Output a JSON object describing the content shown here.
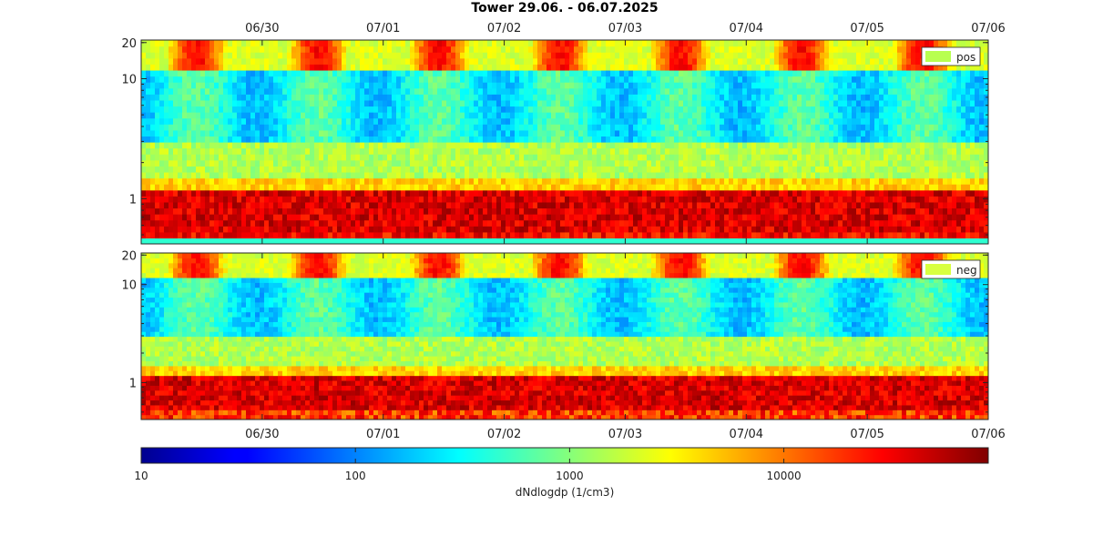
{
  "figure": {
    "title": "Tower 29.06.  -  06.07.2025"
  },
  "chart_data": [
    {
      "type": "heatmap",
      "id": "pos",
      "legend": "pos",
      "legend_color": "#b8ff50",
      "legend_position": "top-right",
      "x_tick_labels": [
        "06/30",
        "07/01",
        "07/02",
        "07/03",
        "07/04",
        "07/05",
        "07/06"
      ],
      "x_tick_position": "top",
      "x_range": [
        "2025-06-29",
        "2025-07-06"
      ],
      "y_scale": "log",
      "y_range": [
        0.42,
        21
      ],
      "y_tick_labels": [
        "1",
        "10",
        "20"
      ],
      "y_ticks": [
        1,
        10,
        20
      ],
      "grid": false
    },
    {
      "type": "heatmap",
      "id": "neg",
      "legend": "neg",
      "legend_color": "#d8ff40",
      "legend_position": "top-right",
      "x_tick_labels": [
        "06/30",
        "07/01",
        "07/02",
        "07/03",
        "07/04",
        "07/05",
        "07/06"
      ],
      "x_tick_position": "bottom",
      "x_range": [
        "2025-06-29",
        "2025-07-06"
      ],
      "y_scale": "log",
      "y_range": [
        0.42,
        21
      ],
      "y_tick_labels": [
        "1",
        "10",
        "20"
      ],
      "y_ticks": [
        1,
        10,
        20
      ],
      "grid": false
    }
  ],
  "colorbar": {
    "colormap": "jet",
    "scale": "log",
    "range": [
      10,
      90000
    ],
    "ticks": [
      10,
      100,
      1000,
      10000
    ],
    "tick_labels": [
      "10",
      "100",
      "1000",
      "10000"
    ],
    "label": "dNdlogdp (1/cm3)"
  }
}
